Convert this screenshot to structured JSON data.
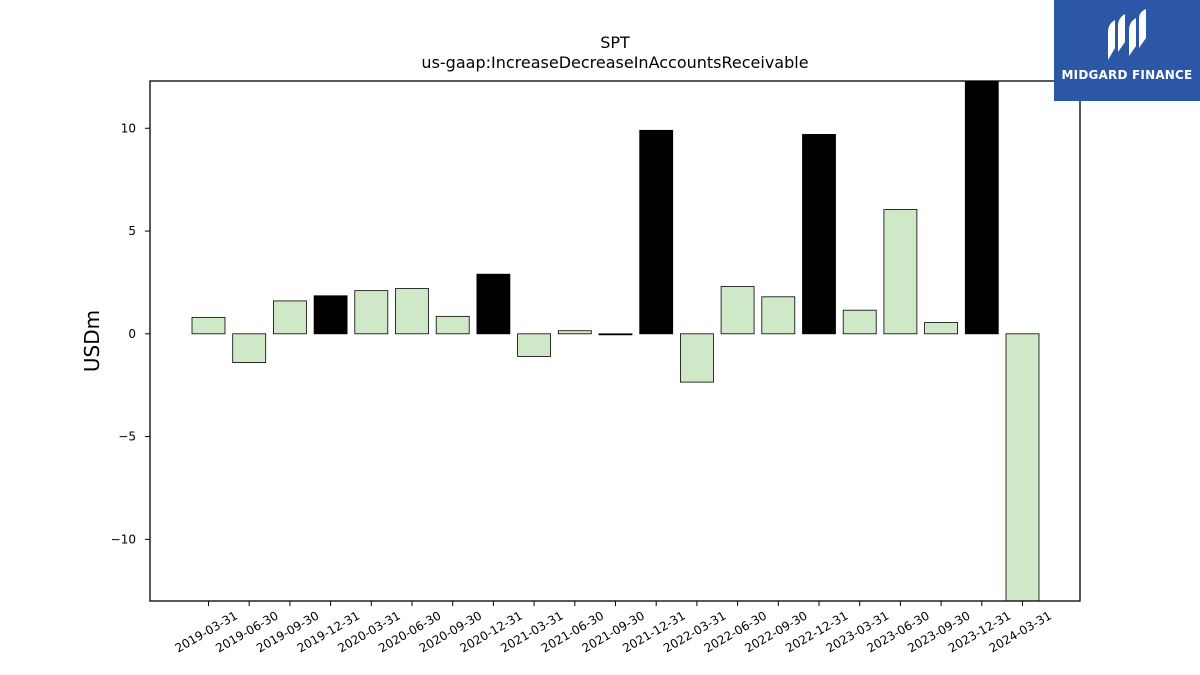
{
  "logo": {
    "text": "MIDGARD FINANCE",
    "color": "#2b57a6"
  },
  "chart_data": {
    "type": "bar",
    "title": "SPT",
    "subtitle": "us-gaap:IncreaseDecreaseInAccountsReceivable",
    "xlabel": "",
    "ylabel": "USDm",
    "ylim": [
      -13,
      12.3
    ],
    "yticks": [
      10,
      5,
      0,
      -5,
      -10
    ],
    "ytick_labels": [
      "10",
      "5",
      "0",
      "−5",
      "−10"
    ],
    "grid": false,
    "categories": [
      "2019-03-31",
      "2019-06-30",
      "2019-09-30",
      "2019-12-31",
      "2020-03-31",
      "2020-06-30",
      "2020-09-30",
      "2020-12-31",
      "2021-03-31",
      "2021-06-30",
      "2021-09-30",
      "2021-12-31",
      "2022-03-31",
      "2022-06-30",
      "2022-09-30",
      "2022-12-31",
      "2023-03-31",
      "2023-06-30",
      "2023-09-30",
      "2023-12-31",
      "2024-03-31"
    ],
    "values": [
      0.8,
      -1.4,
      1.6,
      1.85,
      2.1,
      2.2,
      0.85,
      2.9,
      -1.1,
      0.15,
      -0.05,
      9.9,
      -2.35,
      2.3,
      1.8,
      9.7,
      1.15,
      6.05,
      0.55,
      12.3,
      -13.0
    ],
    "annual": [
      false,
      false,
      false,
      true,
      false,
      false,
      false,
      true,
      false,
      false,
      true,
      true,
      false,
      false,
      false,
      true,
      false,
      false,
      false,
      true,
      false
    ],
    "colors": {
      "quarter": "#cfe8c8",
      "annual": "#000000",
      "edge": "#000000"
    }
  }
}
